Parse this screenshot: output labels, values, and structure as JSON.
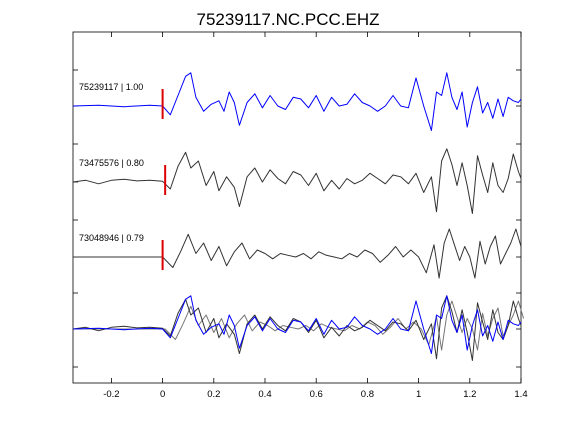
{
  "chart_data": {
    "type": "line",
    "title": "75239117.NC.PCC.EHZ",
    "xlabel": "",
    "ylabel": "",
    "xlim": [
      -0.35,
      1.4
    ],
    "x_ticks": [
      -0.2,
      0,
      0.2,
      0.4,
      0.6,
      0.8,
      1,
      1.2,
      1.4
    ],
    "x_tick_labels": [
      "-0.2",
      "0",
      "0.2",
      "0.4",
      "0.6",
      "0.8",
      "1",
      "1.2",
      "1.4"
    ],
    "grid": false,
    "colors": {
      "reference": "#0000ff",
      "trace": "#333333",
      "overlay": "#777777",
      "pick": "#dd0000"
    },
    "traces": [
      {
        "label": "75239117 | 1.00",
        "id": "75239117",
        "correlation": 1.0,
        "color": "#0000ff",
        "pick_time": 0.0,
        "t": [
          -0.35,
          -0.25,
          -0.15,
          -0.05,
          0.0,
          0.03,
          0.06,
          0.09,
          0.11,
          0.13,
          0.16,
          0.19,
          0.22,
          0.24,
          0.26,
          0.28,
          0.3,
          0.33,
          0.36,
          0.39,
          0.42,
          0.45,
          0.48,
          0.51,
          0.54,
          0.57,
          0.6,
          0.63,
          0.66,
          0.69,
          0.72,
          0.75,
          0.78,
          0.81,
          0.84,
          0.87,
          0.9,
          0.93,
          0.96,
          0.99,
          1.02,
          1.05,
          1.07,
          1.09,
          1.11,
          1.13,
          1.15,
          1.17,
          1.19,
          1.21,
          1.23,
          1.25,
          1.27,
          1.29,
          1.31,
          1.33,
          1.35,
          1.37,
          1.39,
          1.4
        ],
        "amp": [
          0.0,
          0.02,
          -0.02,
          0.02,
          0.0,
          -0.25,
          0.3,
          0.85,
          0.95,
          0.25,
          -0.15,
          0.05,
          0.15,
          -0.15,
          0.4,
          0.1,
          -0.55,
          0.1,
          0.35,
          -0.05,
          0.3,
          0.0,
          -0.1,
          0.25,
          0.2,
          -0.05,
          0.3,
          -0.15,
          0.25,
          0.0,
          0.05,
          0.35,
          0.1,
          0.0,
          -0.15,
          0.0,
          0.3,
          0.0,
          -0.05,
          0.8,
          0.0,
          -0.7,
          0.4,
          0.3,
          0.95,
          0.25,
          -0.1,
          0.4,
          -0.6,
          0.1,
          0.55,
          -0.2,
          0.1,
          -0.35,
          0.2,
          -0.3,
          0.25,
          0.15,
          0.1,
          0.2
        ]
      },
      {
        "label": "73475576 | 0.80",
        "id": "73475576",
        "correlation": 0.8,
        "color": "#333333",
        "pick_time": 0.01,
        "t": [
          -0.35,
          -0.3,
          -0.25,
          -0.2,
          -0.15,
          -0.1,
          -0.05,
          0.0,
          0.03,
          0.06,
          0.09,
          0.11,
          0.14,
          0.17,
          0.2,
          0.22,
          0.25,
          0.28,
          0.3,
          0.33,
          0.36,
          0.39,
          0.42,
          0.45,
          0.48,
          0.51,
          0.54,
          0.57,
          0.6,
          0.63,
          0.66,
          0.69,
          0.72,
          0.75,
          0.78,
          0.81,
          0.84,
          0.87,
          0.9,
          0.93,
          0.96,
          0.99,
          1.02,
          1.05,
          1.07,
          1.09,
          1.11,
          1.13,
          1.15,
          1.17,
          1.19,
          1.21,
          1.23,
          1.25,
          1.27,
          1.29,
          1.31,
          1.33,
          1.35,
          1.37,
          1.39,
          1.4
        ],
        "amp": [
          0.0,
          0.05,
          -0.05,
          0.05,
          0.08,
          0.03,
          0.05,
          0.02,
          -0.2,
          0.45,
          0.85,
          0.4,
          0.6,
          -0.1,
          0.3,
          -0.25,
          0.15,
          -0.15,
          -0.7,
          0.15,
          0.4,
          0.0,
          0.35,
          0.1,
          -0.05,
          0.3,
          0.2,
          -0.1,
          0.25,
          -0.25,
          0.05,
          -0.2,
          0.1,
          -0.05,
          0.05,
          0.25,
          0.1,
          -0.05,
          0.2,
          0.15,
          -0.05,
          0.25,
          -0.3,
          0.15,
          -0.85,
          0.6,
          0.95,
          0.5,
          -0.1,
          0.55,
          -0.1,
          -0.9,
          0.75,
          0.2,
          -0.3,
          0.55,
          -0.1,
          -0.3,
          0.1,
          0.8,
          0.3,
          0.1
        ]
      },
      {
        "label": "73048946 | 0.79",
        "id": "73048946",
        "correlation": 0.79,
        "color": "#333333",
        "pick_time": 0.0,
        "t": [
          -0.35,
          -0.1,
          0.0,
          0.04,
          0.07,
          0.1,
          0.13,
          0.16,
          0.19,
          0.22,
          0.25,
          0.28,
          0.31,
          0.34,
          0.37,
          0.4,
          0.43,
          0.46,
          0.49,
          0.52,
          0.55,
          0.58,
          0.61,
          0.64,
          0.67,
          0.7,
          0.73,
          0.76,
          0.79,
          0.82,
          0.85,
          0.88,
          0.91,
          0.94,
          0.97,
          1.0,
          1.03,
          1.06,
          1.08,
          1.1,
          1.12,
          1.14,
          1.16,
          1.18,
          1.2,
          1.22,
          1.24,
          1.26,
          1.28,
          1.3,
          1.32,
          1.34,
          1.36,
          1.38,
          1.4
        ],
        "amp": [
          0.0,
          0.0,
          0.0,
          -0.3,
          0.15,
          0.65,
          0.1,
          0.4,
          -0.1,
          0.3,
          -0.25,
          0.15,
          0.4,
          -0.05,
          0.2,
          0.1,
          -0.05,
          0.1,
          0.05,
          0.0,
          0.1,
          -0.05,
          0.15,
          0.05,
          0.0,
          -0.05,
          0.1,
          0.0,
          0.2,
          0.1,
          -0.15,
          0.05,
          0.3,
          0.0,
          0.2,
          0.0,
          -0.45,
          0.35,
          -0.6,
          0.4,
          0.8,
          0.35,
          -0.1,
          0.3,
          0.0,
          -0.6,
          0.45,
          -0.2,
          0.3,
          0.6,
          -0.2,
          0.1,
          0.4,
          0.8,
          0.3
        ]
      }
    ]
  }
}
